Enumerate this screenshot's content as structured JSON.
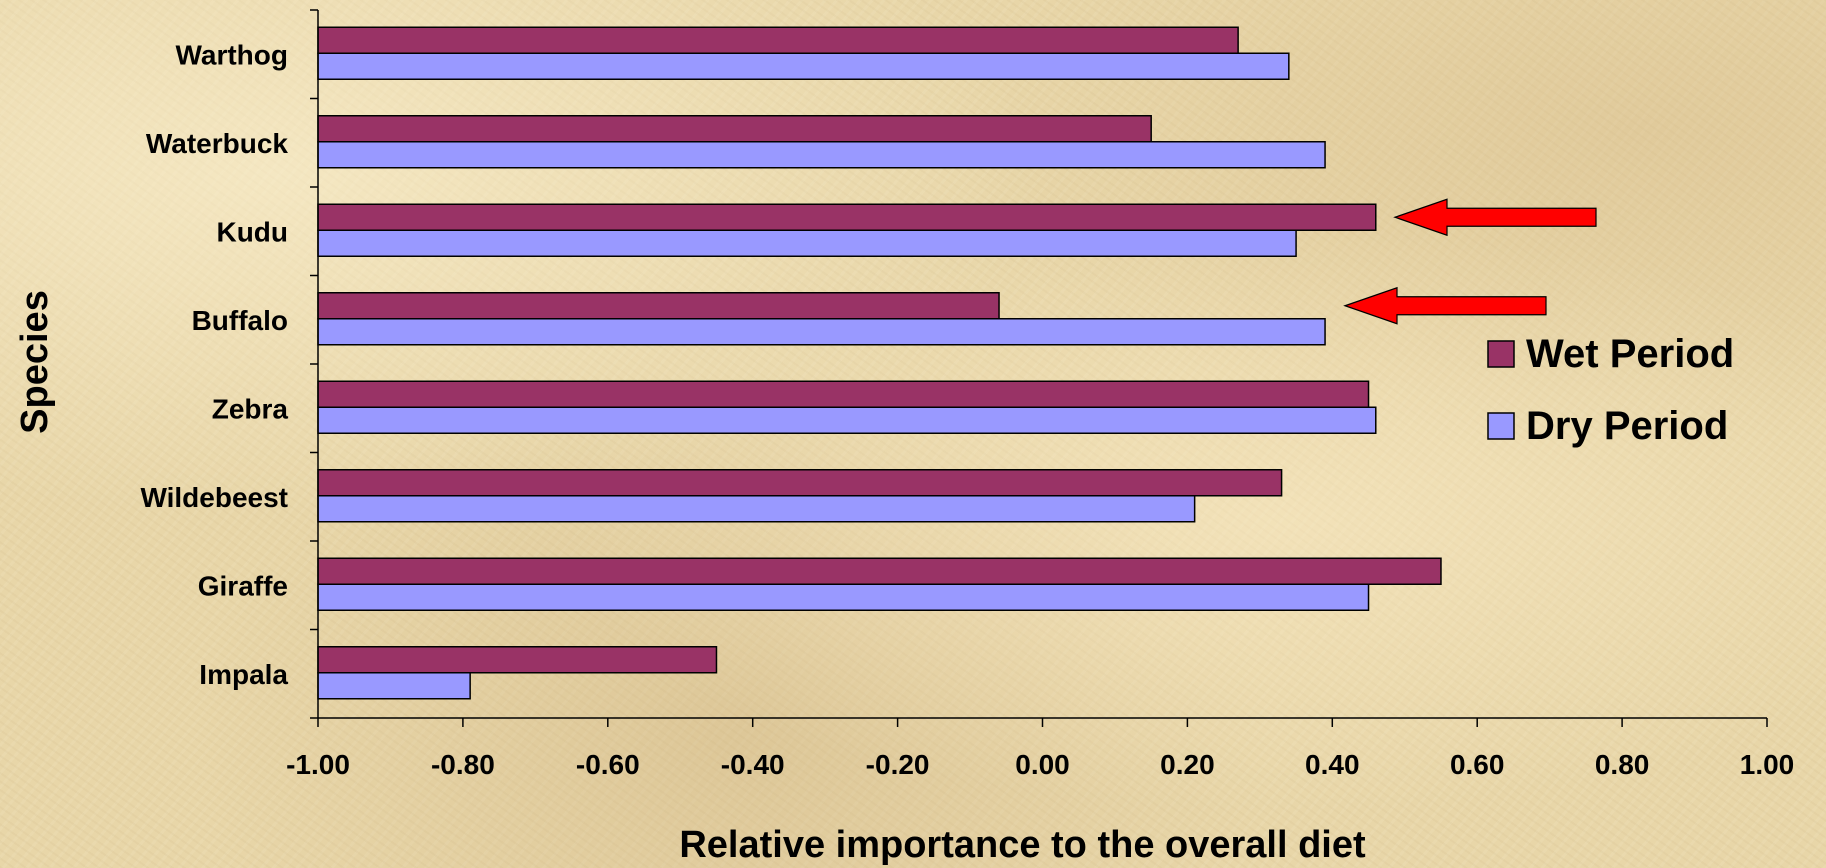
{
  "chart_data": {
    "type": "bar",
    "orientation": "horizontal",
    "title": "",
    "xlabel": "Relative importance to the overall diet",
    "ylabel": "Species",
    "categories": [
      "Warthog",
      "Waterbuck",
      "Kudu",
      "Buffalo",
      "Zebra",
      "Wildebeest",
      "Giraffe",
      "Impala"
    ],
    "series": [
      {
        "name": "Wet Period",
        "color": "#993366",
        "values": [
          0.27,
          0.15,
          0.46,
          -0.06,
          0.45,
          0.33,
          0.55,
          -0.45
        ]
      },
      {
        "name": "Dry Period",
        "color": "#9999ff",
        "values": [
          0.34,
          0.39,
          0.35,
          0.39,
          0.46,
          0.21,
          0.45,
          -0.79
        ]
      }
    ],
    "xlim": [
      -1.0,
      1.0
    ],
    "x_ticks": [
      "-1.00",
      "-0.80",
      "-0.60",
      "-0.40",
      "-0.20",
      "0.00",
      "0.20",
      "0.40",
      "0.60",
      "0.80",
      "1.00"
    ],
    "x_tick_values": [
      -1.0,
      -0.8,
      -0.6,
      -0.4,
      -0.2,
      0.0,
      0.2,
      0.4,
      0.6,
      0.8,
      1.0
    ],
    "grid": false,
    "legend": "right",
    "annotations": [
      {
        "type": "arrow",
        "color": "#ff0000",
        "points_to": "Kudu"
      },
      {
        "type": "arrow",
        "color": "#ff0000",
        "points_to": "Buffalo"
      }
    ]
  }
}
